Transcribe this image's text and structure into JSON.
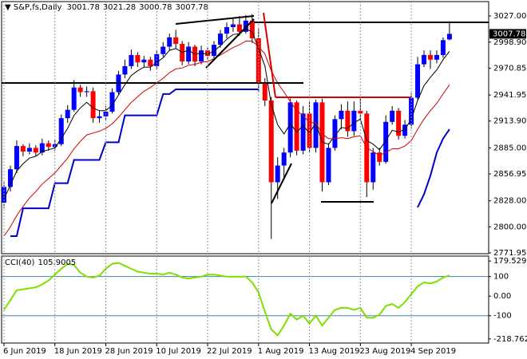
{
  "chart_data": [
    {
      "type": "candlestick",
      "title": "S&P,fs,Daily",
      "categories": [
        "6 Jun 2019",
        null,
        null,
        null,
        null,
        null,
        null,
        null,
        "18 Jun 2019",
        null,
        null,
        null,
        null,
        null,
        null,
        null,
        "28 Jun 2019",
        null,
        null,
        null,
        null,
        null,
        null,
        null,
        "10 Jul 2019",
        null,
        null,
        null,
        null,
        null,
        null,
        null,
        "22 Jul 2019",
        null,
        null,
        null,
        null,
        null,
        null,
        null,
        "1 Aug 2019",
        null,
        null,
        null,
        null,
        null,
        null,
        null,
        "13 Aug 2019",
        null,
        null,
        null,
        null,
        null,
        null,
        null,
        "23 Aug 2019",
        null,
        null,
        null,
        null,
        null,
        null,
        null,
        "4 Sep 2019",
        null,
        null,
        null,
        null,
        null,
        null
      ],
      "open": [
        2826,
        2843,
        2862,
        2887,
        2881,
        2885,
        2880,
        2890,
        2886,
        2889,
        2917,
        2926,
        2950,
        2945,
        2946,
        2917,
        2919,
        2924,
        2945,
        2964,
        2973,
        2985,
        2977,
        2980,
        2973,
        2986,
        2994,
        3004,
        2997,
        2978,
        2994,
        2978,
        2990,
        2984,
        2996,
        3008,
        3015,
        3018,
        3010,
        3022,
        3003,
        2955,
        2936,
        2848,
        2866,
        2880,
        2934,
        2882,
        2922,
        2885,
        2934,
        2848,
        2885,
        2916,
        2925,
        2903,
        2925,
        2922,
        2848,
        2880,
        2870,
        2913,
        2925,
        2898,
        2910,
        2939,
        2975,
        2985,
        2980,
        2985,
        3001.78
      ],
      "high": [
        2848,
        2866,
        2893,
        2889,
        2890,
        2888,
        2895,
        2893,
        2894,
        2921,
        2931,
        2958,
        2953,
        2951,
        2950,
        2925,
        2930,
        2949,
        2968,
        2980,
        2991,
        2988,
        2984,
        2983,
        2990,
        2999,
        3008,
        3012,
        3000,
        2999,
        2996,
        2995,
        2993,
        3000,
        3012,
        3020,
        3024,
        3027,
        3028,
        3029,
        3013,
        2960,
        2940,
        2875,
        2885,
        2938,
        2936,
        2930,
        2935,
        2937,
        2938,
        2890,
        2920,
        2932,
        2935,
        2935,
        2939,
        2925,
        2885,
        2885,
        2920,
        2930,
        2928,
        2915,
        2944,
        2983,
        2990,
        2990,
        2990,
        3004,
        3021.28
      ],
      "low": [
        2820,
        2838,
        2858,
        2876,
        2878,
        2876,
        2877,
        2882,
        2882,
        2887,
        2912,
        2924,
        2940,
        2940,
        2912,
        2912,
        2915,
        2922,
        2943,
        2960,
        2970,
        2972,
        2972,
        2968,
        2970,
        2983,
        2990,
        2992,
        2974,
        2975,
        2973,
        2975,
        2979,
        2980,
        2993,
        3003,
        3010,
        3006,
        3008,
        2998,
        2945,
        2930,
        2787,
        2830,
        2852,
        2875,
        2877,
        2878,
        2880,
        2880,
        2838,
        2845,
        2882,
        2905,
        2897,
        2898,
        2915,
        2832,
        2840,
        2866,
        2868,
        2910,
        2894,
        2895,
        2906,
        2936,
        2972,
        2970,
        2976,
        2982,
        3000.78
      ],
      "close": [
        2843,
        2862,
        2887,
        2881,
        2885,
        2880,
        2890,
        2886,
        2889,
        2917,
        2926,
        2950,
        2945,
        2946,
        2917,
        2919,
        2924,
        2945,
        2964,
        2973,
        2985,
        2977,
        2980,
        2973,
        2986,
        2994,
        3004,
        2997,
        2978,
        2994,
        2978,
        2990,
        2984,
        2996,
        3008,
        3015,
        3018,
        3010,
        3022,
        3003,
        2955,
        2936,
        2848,
        2866,
        2880,
        2934,
        2882,
        2922,
        2885,
        2934,
        2848,
        2885,
        2916,
        2925,
        2903,
        2925,
        2922,
        2848,
        2880,
        2870,
        2913,
        2925,
        2898,
        2910,
        2939,
        2975,
        2985,
        2980,
        2985,
        3001,
        3007.78
      ],
      "up_color": "#0000ff",
      "down_color": "#ff0000",
      "wick_color": "#000000",
      "overlays": [
        {
          "color": "#000000",
          "values": [
            2830,
            2845,
            2860,
            2868,
            2874,
            2876,
            2881,
            2883,
            2885,
            2895,
            2906,
            2920,
            2928,
            2934,
            2928,
            2925,
            2925,
            2931,
            2942,
            2953,
            2963,
            2968,
            2972,
            2972,
            2977,
            2982,
            2990,
            2992,
            2988,
            2990,
            2986,
            2987,
            2986,
            2989,
            2995,
            3002,
            3007,
            3008,
            3013,
            3010,
            2992,
            2973,
            2932,
            2910,
            2900,
            2911,
            2902,
            2909,
            2901,
            2912,
            2891,
            2889,
            2898,
            2907,
            2906,
            2912,
            2916,
            2893,
            2889,
            2883,
            2893,
            2904,
            2902,
            2905,
            2916,
            2936,
            2952,
            2961,
            2969,
            2980,
            2989
          ]
        },
        {
          "color": "#d40000",
          "values": [
            2790,
            2800,
            2812,
            2822,
            2831,
            2838,
            2846,
            2852,
            2858,
            2866,
            2874,
            2884,
            2892,
            2899,
            2901,
            2903,
            2906,
            2911,
            2918,
            2926,
            2934,
            2940,
            2946,
            2950,
            2955,
            2960,
            2966,
            2970,
            2971,
            2974,
            2975,
            2977,
            2978,
            2981,
            2985,
            2989,
            2993,
            2996,
            3000,
            3000,
            2994,
            2986,
            2968,
            2955,
            2945,
            2935,
            2925,
            2920,
            2912,
            2912,
            2900,
            2895,
            2895,
            2896,
            2895,
            2897,
            2898,
            2885,
            2881,
            2877,
            2880,
            2884,
            2884,
            2887,
            2893,
            2905,
            2916,
            2925,
            2933,
            2943,
            2953
          ]
        },
        {
          "color": "#0000cc",
          "values": [
            null,
            2790,
            2790,
            2820,
            2820,
            2820,
            2820,
            2820,
            2847,
            2847,
            2847,
            2872,
            2872,
            2872,
            2872,
            2872,
            2891,
            2891,
            2891,
            2920,
            2920,
            2920,
            2920,
            2920,
            2920,
            2943,
            2943,
            2948,
            2948,
            2948,
            2948,
            2948,
            2948,
            2948,
            2948,
            2948,
            2948,
            2948,
            2948,
            2948,
            2948,
            null,
            null,
            null,
            null,
            null,
            null,
            null,
            null,
            null,
            null,
            null,
            null,
            null,
            null,
            null,
            null,
            null,
            null,
            null,
            null,
            null,
            null,
            null,
            null,
            2821,
            2835,
            2855,
            2880,
            2895,
            2905
          ]
        }
      ],
      "ylim": [
        2771.1,
        3042.5
      ],
      "yticks": [
        {
          "value": 3027,
          "label": "3027.00"
        },
        {
          "value": 2998.9,
          "label": "2998.90"
        },
        2970.85,
        2941.95,
        {
          "value": 2913.9,
          "label": "2913.90"
        },
        {
          "value": 2885,
          "label": "2885.00"
        },
        2856.95,
        {
          "value": 2828,
          "label": "2828.00"
        },
        {
          "value": 2800,
          "label": "2800.00"
        },
        2771.95
      ]
    },
    {
      "type": "line",
      "title": "CCI(40)",
      "color": "#7fdf00",
      "values": [
        -70,
        -20,
        30,
        35,
        40,
        45,
        60,
        80,
        110,
        140,
        165,
        160,
        120,
        100,
        95,
        105,
        140,
        165,
        170,
        155,
        140,
        125,
        120,
        115,
        115,
        110,
        120,
        110,
        95,
        90,
        95,
        100,
        110,
        110,
        105,
        100,
        100,
        100,
        100,
        70,
        20,
        -80,
        -170,
        -200,
        -150,
        -90,
        -120,
        -100,
        -140,
        -100,
        -150,
        -110,
        -70,
        -60,
        -60,
        -70,
        -60,
        -110,
        -110,
        -95,
        -50,
        -40,
        -60,
        -30,
        10,
        50,
        70,
        65,
        75,
        95,
        105.9005
      ],
      "levels": [
        100,
        -100
      ],
      "level_color": "#4682b4",
      "ylim": [
        -239.7,
        204.7
      ],
      "yticks": [
        179.5298,
        100,
        {
          "value": 0,
          "label": "0.00"
        },
        -100,
        -218.7625
      ]
    }
  ]
}
